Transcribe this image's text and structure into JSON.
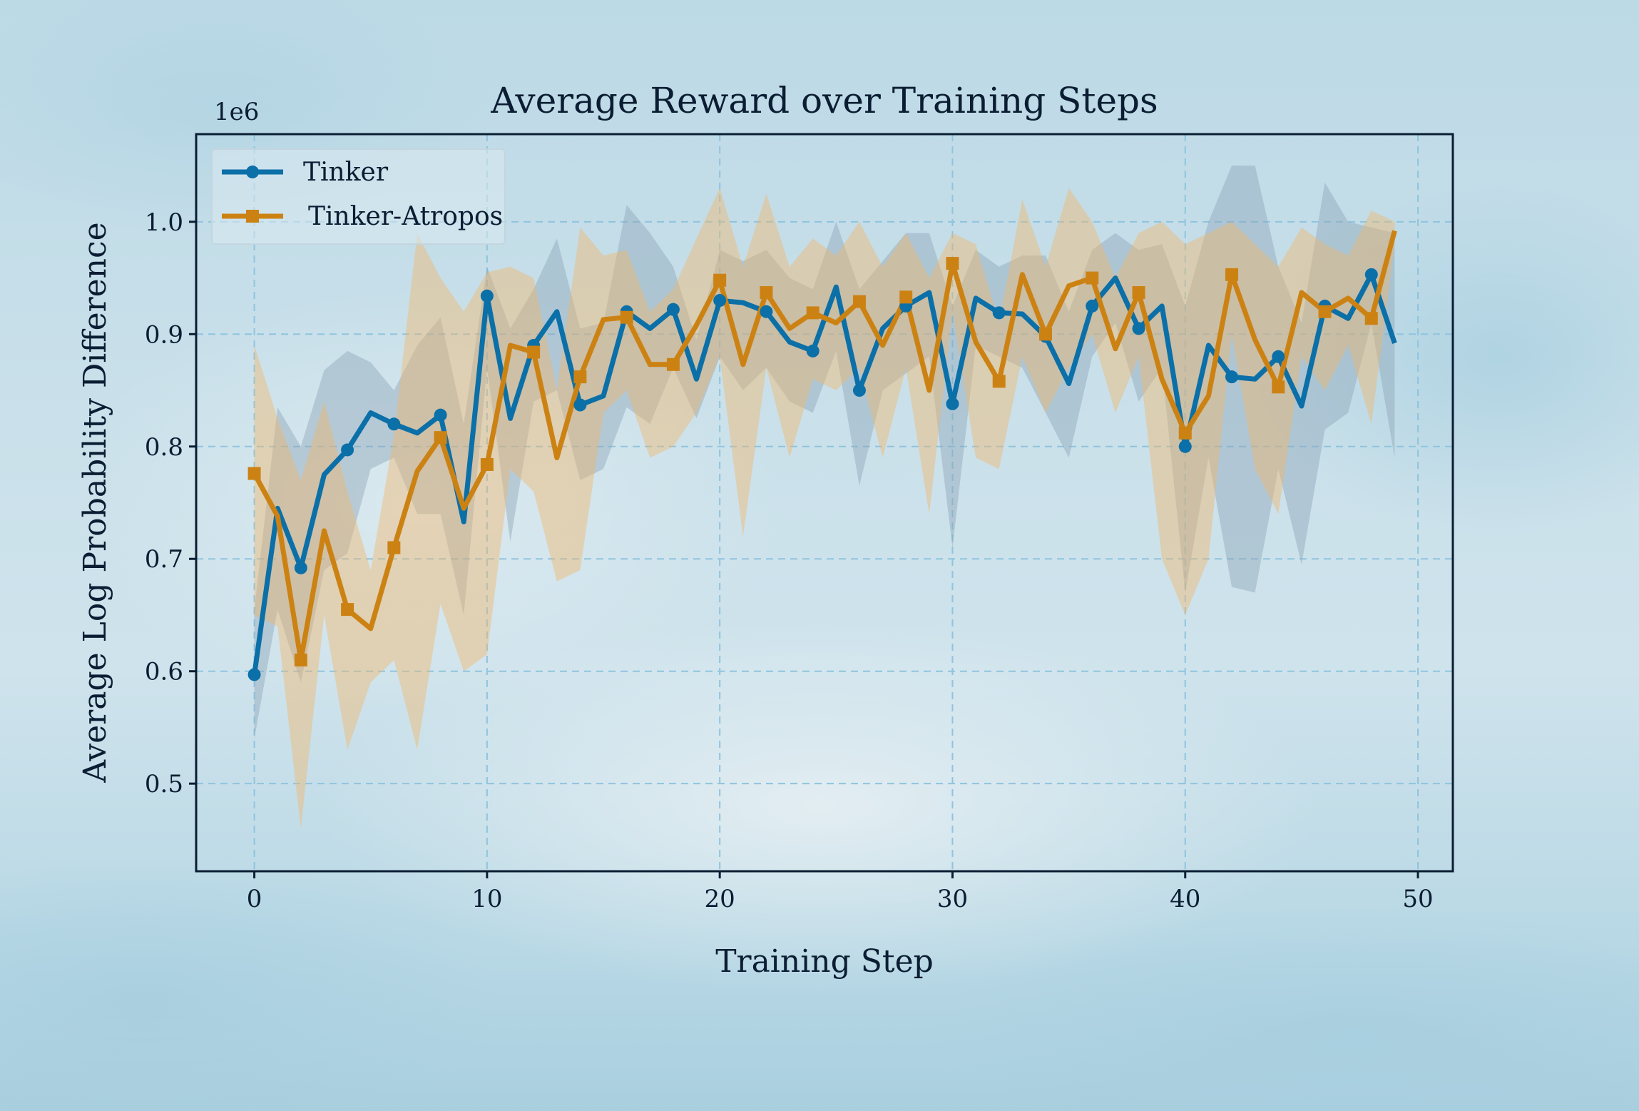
{
  "chart_data": {
    "type": "line",
    "title": "Average Reward over Training Steps",
    "xlabel": "Training Step",
    "ylabel": "Average Log Probability Difference",
    "offset_text": "1e6",
    "xlim": [
      -2.5,
      51.5
    ],
    "ylim": [
      0.422,
      1.078
    ],
    "scale": 1000000,
    "xticks": [
      0,
      10,
      20,
      30,
      40,
      50
    ],
    "xtick_labels": [
      "0",
      "10",
      "20",
      "30",
      "40",
      "50"
    ],
    "yticks": [
      0.5,
      0.6,
      0.7,
      0.8,
      0.9,
      1.0
    ],
    "ytick_labels": [
      "0.5",
      "0.6",
      "0.7",
      "0.8",
      "0.9",
      "1.0"
    ],
    "grid": true,
    "legend_position": "top-left",
    "x": [
      0,
      1,
      2,
      3,
      4,
      5,
      6,
      7,
      8,
      9,
      10,
      11,
      12,
      13,
      14,
      15,
      16,
      17,
      18,
      19,
      20,
      21,
      22,
      23,
      24,
      25,
      26,
      27,
      28,
      29,
      30,
      31,
      32,
      33,
      34,
      35,
      36,
      37,
      38,
      39,
      40,
      41,
      42,
      43,
      44,
      45,
      46,
      47,
      48,
      49
    ],
    "series": [
      {
        "name": "Tinker",
        "color": "#0b6fa8",
        "marker": "circle",
        "values": [
          0.597,
          0.745,
          0.692,
          0.775,
          0.797,
          0.83,
          0.82,
          0.812,
          0.828,
          0.733,
          0.934,
          0.825,
          0.89,
          0.92,
          0.837,
          0.845,
          0.92,
          0.905,
          0.922,
          0.86,
          0.93,
          0.928,
          0.92,
          0.893,
          0.885,
          0.942,
          0.85,
          0.905,
          0.925,
          0.937,
          0.838,
          0.932,
          0.919,
          0.918,
          0.898,
          0.856,
          0.925,
          0.95,
          0.905,
          0.925,
          0.8,
          0.89,
          0.862,
          0.86,
          0.88,
          0.836,
          0.925,
          0.914,
          0.953,
          0.892
        ],
        "upper": [
          0.655,
          0.835,
          0.8,
          0.868,
          0.885,
          0.875,
          0.85,
          0.89,
          0.915,
          0.82,
          0.96,
          0.905,
          0.94,
          0.985,
          0.905,
          0.91,
          1.015,
          0.99,
          0.96,
          0.895,
          0.975,
          0.965,
          0.975,
          0.95,
          0.94,
          1.0,
          0.94,
          0.965,
          0.99,
          0.99,
          0.925,
          0.975,
          0.96,
          0.97,
          0.97,
          0.92,
          0.975,
          0.99,
          0.975,
          0.98,
          0.925,
          1.0,
          1.05,
          1.05,
          0.96,
          0.91,
          1.035,
          1.0,
          0.995,
          0.99
        ],
        "lower": [
          0.54,
          0.655,
          0.59,
          0.69,
          0.705,
          0.78,
          0.79,
          0.74,
          0.74,
          0.65,
          0.87,
          0.715,
          0.84,
          0.85,
          0.77,
          0.78,
          0.835,
          0.82,
          0.87,
          0.825,
          0.88,
          0.85,
          0.87,
          0.84,
          0.83,
          0.885,
          0.765,
          0.85,
          0.865,
          0.88,
          0.71,
          0.89,
          0.88,
          0.87,
          0.83,
          0.79,
          0.88,
          0.91,
          0.84,
          0.87,
          0.67,
          0.79,
          0.675,
          0.67,
          0.78,
          0.695,
          0.815,
          0.83,
          0.91,
          0.79
        ]
      },
      {
        "name": "Tinker-Atropos",
        "color": "#cc8213",
        "marker": "square",
        "values": [
          0.776,
          0.738,
          0.61,
          0.725,
          0.655,
          0.638,
          0.71,
          0.778,
          0.808,
          0.745,
          0.784,
          0.89,
          0.884,
          0.79,
          0.862,
          0.913,
          0.915,
          0.873,
          0.873,
          0.908,
          0.948,
          0.873,
          0.937,
          0.905,
          0.919,
          0.91,
          0.929,
          0.89,
          0.933,
          0.85,
          0.963,
          0.893,
          0.858,
          0.953,
          0.9,
          0.943,
          0.95,
          0.887,
          0.937,
          0.86,
          0.812,
          0.845,
          0.953,
          0.895,
          0.853,
          0.937,
          0.92,
          0.932,
          0.914,
          0.992
        ],
        "upper": [
          0.89,
          0.825,
          0.77,
          0.84,
          0.76,
          0.69,
          0.81,
          0.99,
          0.95,
          0.92,
          0.955,
          0.96,
          0.95,
          0.85,
          0.995,
          0.97,
          0.975,
          0.92,
          0.94,
          0.985,
          1.03,
          0.96,
          1.025,
          0.96,
          0.985,
          0.97,
          1.0,
          0.96,
          0.99,
          0.95,
          0.99,
          0.98,
          0.91,
          1.02,
          0.96,
          1.03,
          1.0,
          0.95,
          0.99,
          1.0,
          0.98,
          0.99,
          1.0,
          0.98,
          0.96,
          0.995,
          0.98,
          0.97,
          1.01,
          1.0
        ],
        "lower": [
          0.65,
          0.64,
          0.46,
          0.65,
          0.53,
          0.59,
          0.61,
          0.53,
          0.66,
          0.6,
          0.615,
          0.78,
          0.76,
          0.68,
          0.69,
          0.83,
          0.85,
          0.79,
          0.8,
          0.83,
          0.88,
          0.72,
          0.87,
          0.79,
          0.86,
          0.85,
          0.87,
          0.79,
          0.87,
          0.74,
          0.92,
          0.79,
          0.78,
          0.88,
          0.83,
          0.87,
          0.9,
          0.83,
          0.88,
          0.7,
          0.65,
          0.7,
          0.9,
          0.78,
          0.74,
          0.88,
          0.85,
          0.89,
          0.82,
          0.98
        ]
      }
    ]
  }
}
